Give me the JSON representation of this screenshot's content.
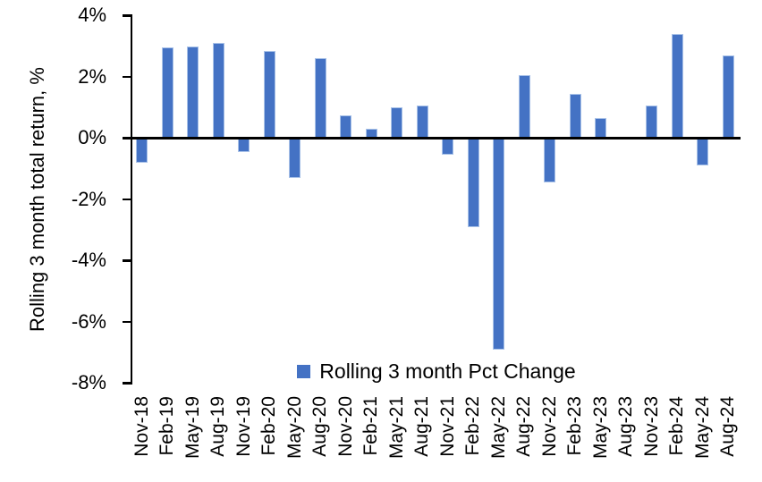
{
  "chart_data": {
    "type": "bar",
    "title": "",
    "ylabel": "Rolling 3 month total return, %",
    "xlabel": "",
    "legend": "Rolling 3 month Pct Change",
    "legend_position": "bottom-center",
    "grid": false,
    "ylim": [
      -8,
      4
    ],
    "ytick_values": [
      4,
      2,
      0,
      -2,
      -4,
      -6,
      -8
    ],
    "ytick_labels": [
      "4%",
      "2%",
      "0%",
      "-2%",
      "-4%",
      "-6%",
      "-8%"
    ],
    "categories": [
      "Nov-18",
      "Feb-19",
      "May-19",
      "Aug-19",
      "Nov-19",
      "Feb-20",
      "May-20",
      "Aug-20",
      "Nov-20",
      "Feb-21",
      "May-21",
      "Aug-21",
      "Nov-21",
      "Feb-22",
      "May-22",
      "Aug-22",
      "Nov-22",
      "Feb-23",
      "May-23",
      "Aug-23",
      "Nov-23",
      "Feb-24",
      "May-24",
      "Aug-24"
    ],
    "series": [
      {
        "name": "Rolling 3 month Pct Change",
        "values": [
          -0.8,
          2.95,
          3.0,
          3.1,
          -0.45,
          2.85,
          -1.3,
          2.6,
          0.75,
          0.3,
          1.0,
          1.05,
          -0.55,
          -2.9,
          -6.9,
          2.05,
          -1.45,
          1.45,
          0.65,
          0.0,
          1.05,
          3.4,
          -0.9,
          2.7
        ]
      }
    ],
    "bar_color": "#4472C4",
    "bar_border_color": "#A9C2E8",
    "axis_color": "#000000",
    "background_color": "#FFFFFF"
  }
}
